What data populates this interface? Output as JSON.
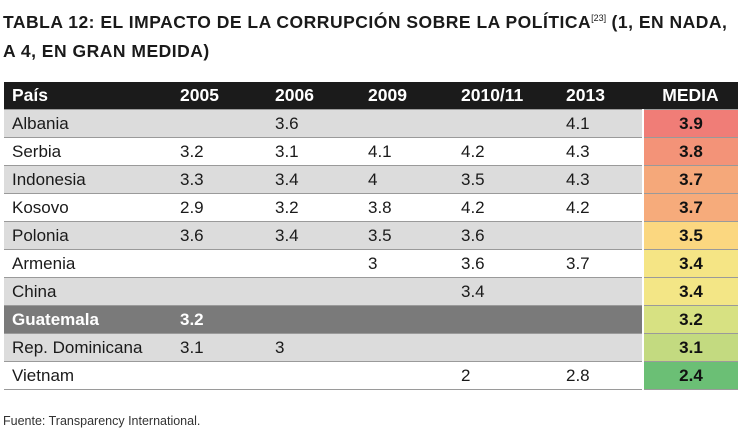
{
  "title": {
    "line1": "TABLA 12: EL IMPACTO DE LA CORRUPCIÓN SOBRE LA POLÍTICA",
    "ref": "[23]",
    "line1_end": " (1, EN NADA,",
    "line2": "A 4, EN GRAN MEDIDA)"
  },
  "table": {
    "headers": [
      "País",
      "2005",
      "2006",
      "2009",
      "2010/11",
      "2013",
      "MEDIA"
    ],
    "rows": [
      {
        "pais": "Albania",
        "y2005": "",
        "y2006": "3.6",
        "y2009": "",
        "y2010": "",
        "y2013": "4.1",
        "media": "3.9",
        "color": "#f07d77",
        "style": "gray"
      },
      {
        "pais": "Serbia",
        "y2005": "3.2",
        "y2006": "3.1",
        "y2009": "4.1",
        "y2010": "4.2",
        "y2013": "4.3",
        "media": "3.8",
        "color": "#f39378",
        "style": "white"
      },
      {
        "pais": "Indonesia",
        "y2005": "3.3",
        "y2006": "3.4",
        "y2009": "4",
        "y2010": "3.5",
        "y2013": "4.3",
        "media": "3.7",
        "color": "#f5a87a",
        "style": "gray"
      },
      {
        "pais": "Kosovo",
        "y2005": "2.9",
        "y2006": "3.2",
        "y2009": "3.8",
        "y2010": "4.2",
        "y2013": "4.2",
        "media": "3.7",
        "color": "#f6ab7b",
        "style": "white"
      },
      {
        "pais": "Polonia",
        "y2005": "3.6",
        "y2006": "3.4",
        "y2009": "3.5",
        "y2010": "3.6",
        "y2013": "",
        "media": "3.5",
        "color": "#fbd780",
        "style": "gray"
      },
      {
        "pais": "Armenia",
        "y2005": "",
        "y2006": "",
        "y2009": "3",
        "y2010": "3.6",
        "y2013": "3.7",
        "media": "3.4",
        "color": "#f5e585",
        "style": "white"
      },
      {
        "pais": "China",
        "y2005": "",
        "y2006": "",
        "y2009": "",
        "y2010": "3.4",
        "y2013": "",
        "media": "3.4",
        "color": "#f3e686",
        "style": "gray"
      },
      {
        "pais": "Guatemala",
        "y2005": "3.2",
        "y2006": "",
        "y2009": "",
        "y2010": "",
        "y2013": "",
        "media": "3.2",
        "color": "#d7e182",
        "style": "highlight"
      },
      {
        "pais": "Rep. Dominicana",
        "y2005": "3.1",
        "y2006": "3",
        "y2009": "",
        "y2010": "",
        "y2013": "",
        "media": "3.1",
        "color": "#c3da80",
        "style": "gray"
      },
      {
        "pais": "Vietnam",
        "y2005": "",
        "y2006": "",
        "y2009": "",
        "y2010": "2",
        "y2013": "2.8",
        "media": "2.4",
        "color": "#6bbf75",
        "style": "white"
      }
    ]
  },
  "source": "Fuente: Transparency International."
}
